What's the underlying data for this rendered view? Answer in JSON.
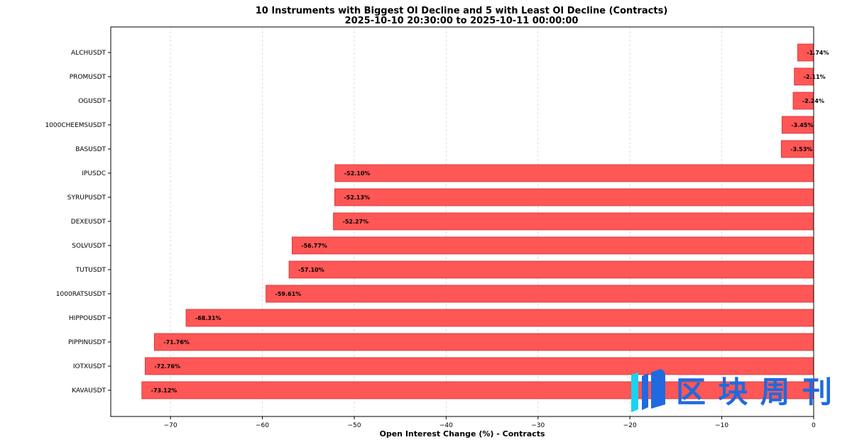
{
  "chart_data": {
    "type": "bar",
    "orientation": "horizontal",
    "title": "10 Instruments with Biggest OI Decline and 5 with Least OI Decline (Contracts)",
    "subtitle": "2025-10-10 20:30:00 to 2025-10-11 00:00:00",
    "xlabel": "Open Interest Change (%) - Contracts",
    "ylabel": "",
    "xlim": [
      -76.5,
      0
    ],
    "xticks": [
      -70,
      -60,
      -50,
      -40,
      -30,
      -20,
      -10,
      0
    ],
    "xtick_labels": [
      "−70",
      "−60",
      "−50",
      "−40",
      "−30",
      "−20",
      "−10",
      "0"
    ],
    "grid": "x dashed",
    "categories": [
      "ALCHUSDT",
      "PROMUSDT",
      "OGUSDT",
      "1000CHEEMSUSDT",
      "BASUSDT",
      "IPUSDC",
      "SYRUPUSDT",
      "DEXEUSDT",
      "SOLVUSDT",
      "TUTUSDT",
      "1000RATSUSDT",
      "HIPPOUSDT",
      "PIPPINUSDT",
      "IOTXUSDT",
      "KAVAUSDT"
    ],
    "values": [
      -1.74,
      -2.11,
      -2.24,
      -3.45,
      -3.53,
      -52.1,
      -52.13,
      -52.27,
      -56.77,
      -57.1,
      -59.61,
      -68.31,
      -71.76,
      -72.76,
      -73.12
    ],
    "data_labels": [
      "-1.74%",
      "-2.11%",
      "-2.24%",
      "-3.45%",
      "-3.53%",
      "-52.10%",
      "-52.13%",
      "-52.27%",
      "-56.77%",
      "-57.10%",
      "-59.61%",
      "-68.31%",
      "-71.76%",
      "-72.76%",
      "-73.12%"
    ],
    "bar_color": "#ff4d4d"
  },
  "watermark": {
    "text": "区块周刊",
    "color": "#1f6ae0",
    "accent": "#1ad3f0"
  }
}
